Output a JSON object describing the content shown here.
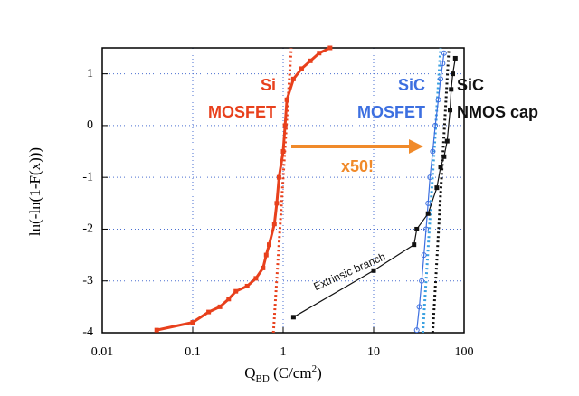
{
  "chart_data": {
    "type": "line",
    "y_label": "ln(-ln(1-F(x)))",
    "x_label": {
      "main": "Q",
      "sub": "BD",
      "unit": " (C/cm",
      "sup": "2",
      "close": ")"
    },
    "xlim": [
      0.01,
      100
    ],
    "xticks": [
      0.01,
      0.1,
      1,
      10,
      100
    ],
    "log_x": true,
    "ylim": [
      -4,
      1.5
    ],
    "yticks": [
      -4,
      -3,
      -2,
      -1,
      0,
      1
    ],
    "grid": true,
    "series": [
      {
        "label": [
          "Si",
          "MOSFET"
        ],
        "color": "#e8401c",
        "marker": "square",
        "x": [
          0.04,
          0.1,
          0.15,
          0.2,
          0.25,
          0.3,
          0.4,
          0.5,
          0.6,
          0.65,
          0.7,
          0.8,
          0.85,
          0.9,
          1.0,
          1.05,
          1.1,
          1.3,
          1.6,
          2.0,
          2.5,
          3.3
        ],
        "values": [
          -3.95,
          -3.8,
          -3.6,
          -3.5,
          -3.35,
          -3.2,
          -3.1,
          -2.95,
          -2.75,
          -2.5,
          -2.3,
          -1.9,
          -1.5,
          -1.0,
          -0.5,
          0.0,
          0.5,
          0.9,
          1.1,
          1.25,
          1.4,
          1.5
        ],
        "fit": {
          "x": [
            0.78,
            1.23
          ],
          "values": [
            -4,
            1.5
          ],
          "color": "#e8401c"
        }
      },
      {
        "label": [
          "SiC",
          "MOSFET"
        ],
        "color": "#3c6fe0",
        "marker": "circle",
        "x": [
          30,
          32,
          34,
          36,
          38,
          40,
          42,
          45,
          48,
          52,
          55,
          58,
          60
        ],
        "values": [
          -3.95,
          -3.5,
          -3.0,
          -2.5,
          -2.0,
          -1.5,
          -1.0,
          -0.5,
          0.0,
          0.5,
          0.9,
          1.2,
          1.4
        ],
        "fit": {
          "x": [
            35,
            55
          ],
          "values": [
            -4,
            1.5
          ],
          "color": "#39a0e0"
        }
      },
      {
        "label": [
          "SiC",
          "NMOS cap"
        ],
        "color": "#111111",
        "marker": "square",
        "x": [
          1.3,
          10,
          28,
          30,
          40,
          50,
          55,
          60,
          65,
          70,
          72,
          75,
          80
        ],
        "values": [
          -3.7,
          -2.8,
          -2.3,
          -2.0,
          -1.7,
          -1.2,
          -0.8,
          -0.6,
          -0.3,
          0.3,
          0.7,
          1.0,
          1.3
        ],
        "fit": {
          "x": [
            45,
            68
          ],
          "values": [
            -4,
            1.5
          ],
          "color": "#111111"
        }
      }
    ],
    "annotations": [
      {
        "text": "x50!",
        "color": "#f08a2a"
      },
      {
        "text": "Extrinsic branch",
        "color": "#111111"
      }
    ]
  }
}
